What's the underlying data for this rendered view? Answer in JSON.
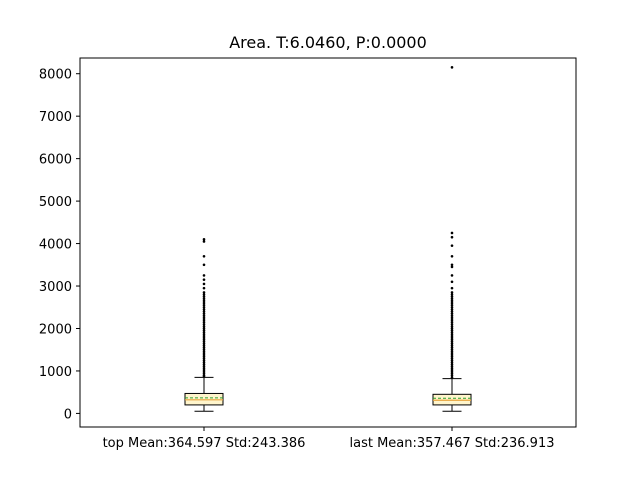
{
  "chart_data": {
    "type": "box",
    "title": "Area. T:6.0460, P:0.0000",
    "xlabel": "",
    "ylabel": "",
    "ylim": [
      -320,
      8370
    ],
    "yticks": [
      0,
      1000,
      2000,
      3000,
      4000,
      5000,
      6000,
      7000,
      8000
    ],
    "categories": [
      "top Mean:364.597 Std:243.386",
      "last Mean:357.467 Std:236.913"
    ],
    "boxes": [
      {
        "category": "top Mean:364.597 Std:243.386",
        "whisker_low": 50,
        "q1": 200,
        "median": 320,
        "mean": 364.597,
        "q3": 470,
        "whisker_high": 850,
        "outliers": [
          870,
          900,
          950,
          1000,
          1050,
          1100,
          1150,
          1200,
          1250,
          1300,
          1350,
          1400,
          1450,
          1500,
          1550,
          1600,
          1650,
          1700,
          1750,
          1800,
          1850,
          1900,
          1950,
          2000,
          2050,
          2100,
          2150,
          2200,
          2250,
          2300,
          2350,
          2400,
          2450,
          2500,
          2550,
          2600,
          2650,
          2700,
          2750,
          2800,
          2850,
          2950,
          3050,
          3150,
          3250,
          3500,
          3700,
          4050,
          4100
        ]
      },
      {
        "category": "last Mean:357.467 Std:236.913",
        "whisker_low": 50,
        "q1": 200,
        "median": 310,
        "mean": 357.467,
        "q3": 450,
        "whisker_high": 820,
        "outliers": [
          850,
          900,
          950,
          1000,
          1050,
          1100,
          1150,
          1200,
          1250,
          1300,
          1350,
          1400,
          1450,
          1500,
          1550,
          1600,
          1650,
          1700,
          1750,
          1800,
          1850,
          1900,
          1950,
          2000,
          2050,
          2100,
          2150,
          2200,
          2250,
          2300,
          2350,
          2400,
          2450,
          2500,
          2550,
          2600,
          2650,
          2700,
          2750,
          2800,
          2850,
          2950,
          3100,
          3250,
          3450,
          3500,
          3700,
          3950,
          4150,
          4250,
          8150
        ]
      }
    ],
    "colors": {
      "box_fill": "#fff5cc",
      "median": "#e8a33d",
      "mean_line": "#2ca02c",
      "outlier": "#000000",
      "axes": "#000000"
    },
    "grid": false,
    "legend": "none"
  }
}
